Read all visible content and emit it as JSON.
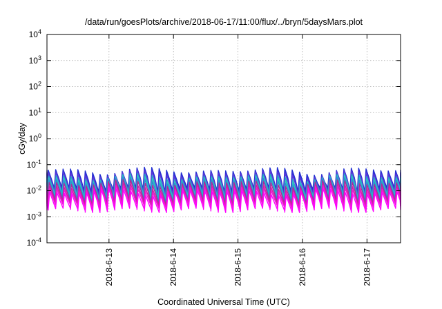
{
  "chart_data": {
    "type": "line",
    "title": "/data/run/goesPlots/archive/2018-06-17/11:00/flux/../bryn/5daysMars.plot",
    "xlabel": "Coordinated Universal Time (UTC)",
    "ylabel": "cGy/day",
    "yscale": "log",
    "ylim": [
      0.0001,
      10000
    ],
    "xlim": [
      "2018-06-12 00:55",
      "2018-06-17 12:30"
    ],
    "grid": true,
    "y_tick_labels": [
      {
        "base": "10",
        "exp": "-4",
        "value": 0.0001
      },
      {
        "base": "10",
        "exp": "-3",
        "value": 0.001
      },
      {
        "base": "10",
        "exp": "-2",
        "value": 0.01
      },
      {
        "base": "10",
        "exp": "-1",
        "value": 0.1
      },
      {
        "base": "10",
        "exp": "0",
        "value": 1
      },
      {
        "base": "10",
        "exp": "1",
        "value": 10
      },
      {
        "base": "10",
        "exp": "2",
        "value": 100
      },
      {
        "base": "10",
        "exp": "3",
        "value": 1000
      },
      {
        "base": "10",
        "exp": "4",
        "value": 10000
      }
    ],
    "x_tick_labels": [
      "2018-6-13",
      "2018-6-14",
      "2018-6-15",
      "2018-6-16",
      "2018-6-17"
    ],
    "series_profile": {
      "description_of_cycle": "sawtooth: quick rise then decay, repeating",
      "cycle_hours": 2.75,
      "peak_levels": [
        0.06,
        0.05,
        0.045,
        0.035,
        0.03,
        0.025,
        0.02,
        0.015,
        0.012,
        0.009
      ],
      "trough_levels": [
        0.011,
        0.009,
        0.008,
        0.0065,
        0.0055,
        0.0045,
        0.0035,
        0.003,
        0.0025,
        0.0018
      ]
    },
    "series": [
      {
        "color": "#1f2fd0"
      },
      {
        "color": "#3a2bd8"
      },
      {
        "color": "#5a3ad8"
      },
      {
        "color": "#22a6c8"
      },
      {
        "color": "#2dc7c0"
      },
      {
        "color": "#2a8fd2"
      },
      {
        "color": "#b02898"
      },
      {
        "color": "#d21fa8"
      },
      {
        "color": "#f019d8"
      },
      {
        "color": "#ff00ff"
      }
    ]
  }
}
